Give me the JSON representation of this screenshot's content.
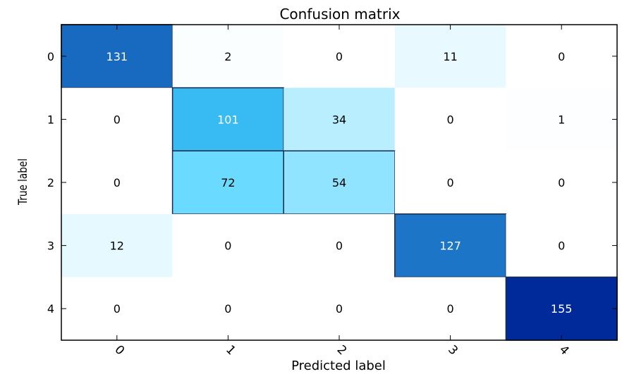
{
  "chart_data": {
    "type": "heatmap",
    "title": "Confusion matrix",
    "xlabel": "Predicted label",
    "ylabel": "True label",
    "x_tick_labels": [
      "0",
      "1",
      "2",
      "3",
      "4"
    ],
    "y_tick_labels": [
      "0",
      "1",
      "2",
      "3",
      "4"
    ],
    "values": [
      [
        131,
        2,
        0,
        11,
        0
      ],
      [
        0,
        101,
        34,
        0,
        1
      ],
      [
        0,
        72,
        54,
        0,
        0
      ],
      [
        12,
        0,
        0,
        127,
        0
      ],
      [
        0,
        0,
        0,
        0,
        155
      ]
    ],
    "colormap": "Blues",
    "value_range": [
      0,
      155
    ],
    "colors": {
      "low": "#ffffff",
      "mid": "#3fd0ff",
      "high": "#002a99",
      "text_light": "#ffffff",
      "text_dark": "#000000"
    }
  }
}
